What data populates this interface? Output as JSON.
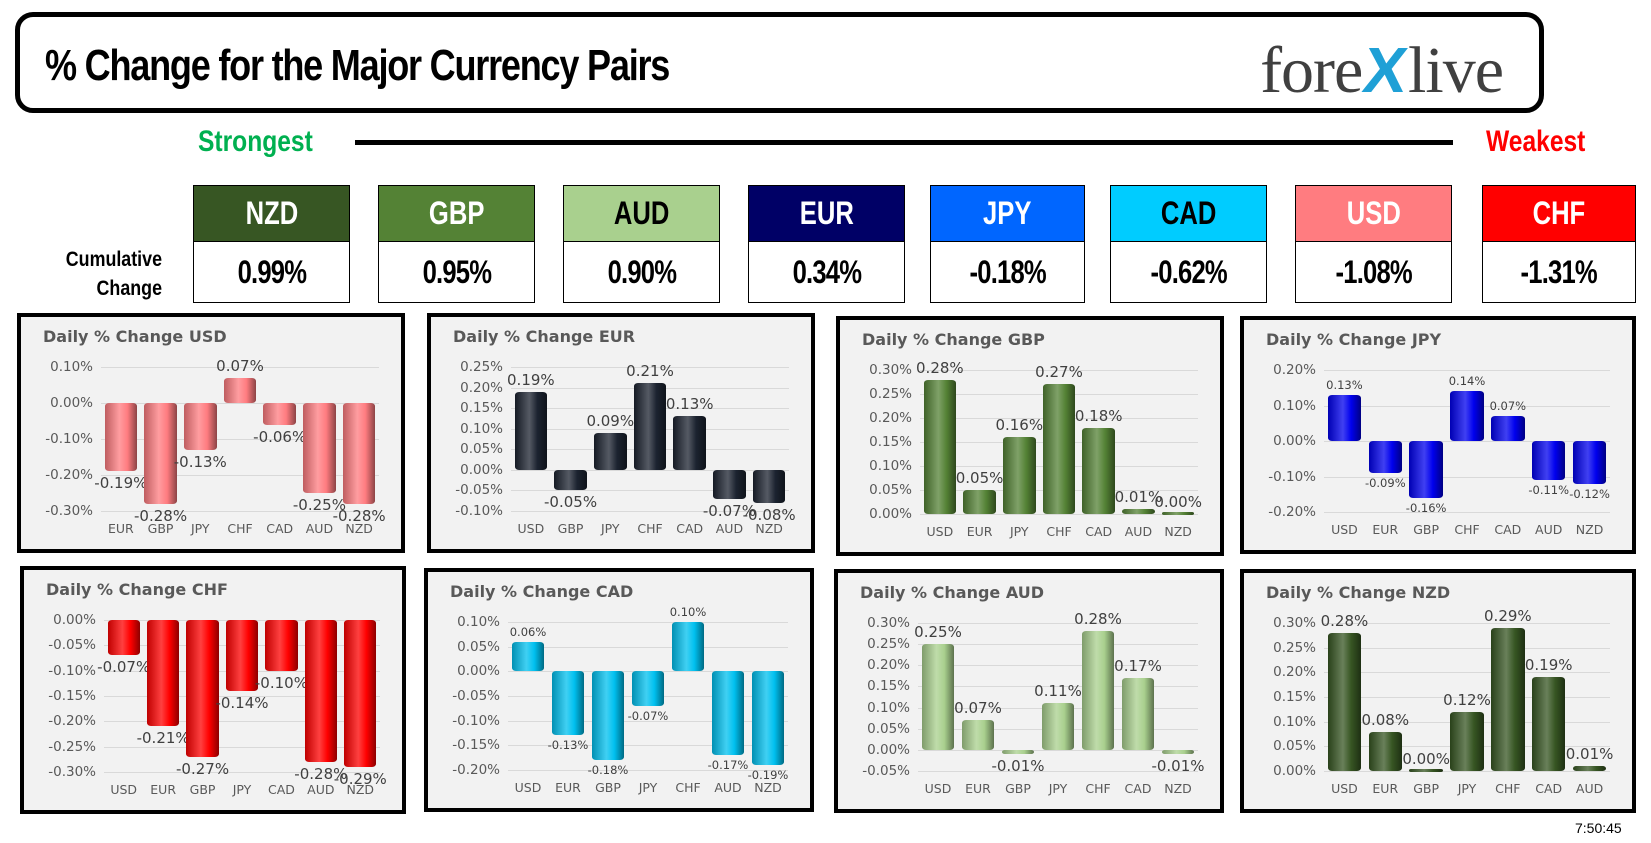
{
  "header": {
    "title": "% Change for the Major Currency Pairs",
    "logo_left": "fore",
    "logo_x": "X",
    "logo_right": "live"
  },
  "strength": {
    "strongest_label": "Strongest",
    "weakest_label": "Weakest",
    "strongest_color": "#00b050",
    "weakest_color": "#ff0000"
  },
  "cumulative": {
    "label_line1": "Cumulative",
    "label_line2": "Change",
    "currencies": [
      {
        "code": "NZD",
        "value": "0.99%",
        "bg": "#375623",
        "fg": "#ffffff"
      },
      {
        "code": "GBP",
        "value": "0.95%",
        "bg": "#548235",
        "fg": "#ffffff"
      },
      {
        "code": "AUD",
        "value": "0.90%",
        "bg": "#a9d08e",
        "fg": "#000000"
      },
      {
        "code": "EUR",
        "value": "0.34%",
        "bg": "#000066",
        "fg": "#ffffff"
      },
      {
        "code": "JPY",
        "value": "-0.18%",
        "bg": "#0066ff",
        "fg": "#ffffff"
      },
      {
        "code": "CAD",
        "value": "-0.62%",
        "bg": "#00ccff",
        "fg": "#000000"
      },
      {
        "code": "USD",
        "value": "-1.08%",
        "bg": "#ff7c80",
        "fg": "#ffffff"
      },
      {
        "code": "CHF",
        "value": "-1.31%",
        "bg": "#ff0000",
        "fg": "#ffffff"
      }
    ]
  },
  "timestamp": "7:50:45",
  "chart_data": [
    {
      "type": "bar",
      "title": "Daily % Change USD",
      "categories": [
        "EUR",
        "GBP",
        "JPY",
        "CHF",
        "CAD",
        "AUD",
        "NZD"
      ],
      "values": [
        -0.19,
        -0.28,
        -0.13,
        0.07,
        -0.06,
        -0.25,
        -0.28
      ],
      "labels": [
        "-0.19%",
        "-0.28%",
        "-0.13%",
        "0.07%",
        "-0.06%",
        "-0.25%",
        "-0.28%"
      ],
      "yticks": [
        "0.10%",
        "0.00%",
        "-0.10%",
        "-0.20%",
        "-0.30%"
      ],
      "ylim": [
        -0.3,
        0.1
      ],
      "color": "#ff7c80",
      "label_size": "normal"
    },
    {
      "type": "bar",
      "title": "Daily % Change EUR",
      "categories": [
        "USD",
        "GBP",
        "JPY",
        "CHF",
        "CAD",
        "AUD",
        "NZD"
      ],
      "values": [
        0.19,
        -0.05,
        0.09,
        0.21,
        0.13,
        -0.07,
        -0.08
      ],
      "labels": [
        "0.19%",
        "-0.05%",
        "0.09%",
        "0.21%",
        "0.13%",
        "-0.07%",
        "-0.08%"
      ],
      "yticks": [
        "0.25%",
        "0.20%",
        "0.15%",
        "0.10%",
        "0.05%",
        "0.00%",
        "-0.05%",
        "-0.10%"
      ],
      "ylim": [
        -0.1,
        0.25
      ],
      "color": "#1c2330",
      "label_size": "normal"
    },
    {
      "type": "bar",
      "title": "Daily % Change GBP",
      "categories": [
        "USD",
        "EUR",
        "JPY",
        "CHF",
        "CAD",
        "AUD",
        "NZD"
      ],
      "values": [
        0.28,
        0.05,
        0.16,
        0.27,
        0.18,
        0.01,
        0.0
      ],
      "labels": [
        "0.28%",
        "0.05%",
        "0.16%",
        "0.27%",
        "0.18%",
        "0.01%",
        "0.00%"
      ],
      "yticks": [
        "0.30%",
        "0.25%",
        "0.20%",
        "0.15%",
        "0.10%",
        "0.05%",
        "0.00%"
      ],
      "ylim": [
        0.0,
        0.3
      ],
      "color": "#548235",
      "label_size": "normal"
    },
    {
      "type": "bar",
      "title": "Daily % Change JPY",
      "categories": [
        "USD",
        "EUR",
        "GBP",
        "CHF",
        "CAD",
        "AUD",
        "NZD"
      ],
      "values": [
        0.13,
        -0.09,
        -0.16,
        0.14,
        0.07,
        -0.11,
        -0.12
      ],
      "labels": [
        "0.13%",
        "-0.09%",
        "-0.16%",
        "0.14%",
        "0.07%",
        "-0.11%",
        "-0.12%"
      ],
      "yticks": [
        "0.20%",
        "0.10%",
        "0.00%",
        "-0.10%",
        "-0.20%"
      ],
      "ylim": [
        -0.2,
        0.2
      ],
      "color": "#0000ee",
      "label_size": "small"
    },
    {
      "type": "bar",
      "title": "Daily % Change CHF",
      "categories": [
        "USD",
        "EUR",
        "GBP",
        "JPY",
        "CAD",
        "AUD",
        "NZD"
      ],
      "values": [
        -0.07,
        -0.21,
        -0.27,
        -0.14,
        -0.1,
        -0.28,
        -0.29
      ],
      "labels": [
        "-0.07%",
        "-0.21%",
        "-0.27%",
        "-0.14%",
        "-0.10%",
        "-0.28%",
        "-0.29%"
      ],
      "yticks": [
        "0.00%",
        "-0.05%",
        "-0.10%",
        "-0.15%",
        "-0.20%",
        "-0.25%",
        "-0.30%"
      ],
      "ylim": [
        -0.3,
        0.0
      ],
      "color": "#ff0000",
      "label_size": "normal"
    },
    {
      "type": "bar",
      "title": "Daily % Change CAD",
      "categories": [
        "USD",
        "EUR",
        "GBP",
        "JPY",
        "CHF",
        "AUD",
        "NZD"
      ],
      "values": [
        0.06,
        -0.13,
        -0.18,
        -0.07,
        0.1,
        -0.17,
        -0.19
      ],
      "labels": [
        "0.06%",
        "-0.13%",
        "-0.18%",
        "-0.07%",
        "0.10%",
        "-0.17%",
        "-0.19%"
      ],
      "yticks": [
        "0.10%",
        "0.05%",
        "0.00%",
        "-0.05%",
        "-0.10%",
        "-0.15%",
        "-0.20%"
      ],
      "ylim": [
        -0.2,
        0.1
      ],
      "color": "#00c0ef",
      "label_size": "small"
    },
    {
      "type": "bar",
      "title": "Daily % Change AUD",
      "categories": [
        "USD",
        "EUR",
        "GBP",
        "JPY",
        "CHF",
        "CAD",
        "NZD"
      ],
      "values": [
        0.25,
        0.07,
        -0.01,
        0.11,
        0.28,
        0.17,
        -0.01
      ],
      "labels": [
        "0.25%",
        "0.07%",
        "-0.01%",
        "0.11%",
        "0.28%",
        "0.17%",
        "-0.01%"
      ],
      "yticks": [
        "0.30%",
        "0.25%",
        "0.20%",
        "0.15%",
        "0.10%",
        "0.05%",
        "0.00%",
        "-0.05%"
      ],
      "ylim": [
        -0.05,
        0.3
      ],
      "color": "#a9d08e",
      "label_size": "normal"
    },
    {
      "type": "bar",
      "title": "Daily % Change NZD",
      "categories": [
        "USD",
        "EUR",
        "GBP",
        "JPY",
        "CHF",
        "CAD",
        "AUD"
      ],
      "values": [
        0.28,
        0.08,
        0.0,
        0.12,
        0.29,
        0.19,
        0.01
      ],
      "labels": [
        "0.28%",
        "0.08%",
        "0.00%",
        "0.12%",
        "0.29%",
        "0.19%",
        "0.01%"
      ],
      "yticks": [
        "0.30%",
        "0.25%",
        "0.20%",
        "0.15%",
        "0.10%",
        "0.05%",
        "0.00%"
      ],
      "ylim": [
        0.0,
        0.3
      ],
      "color": "#375623",
      "label_size": "normal"
    }
  ]
}
